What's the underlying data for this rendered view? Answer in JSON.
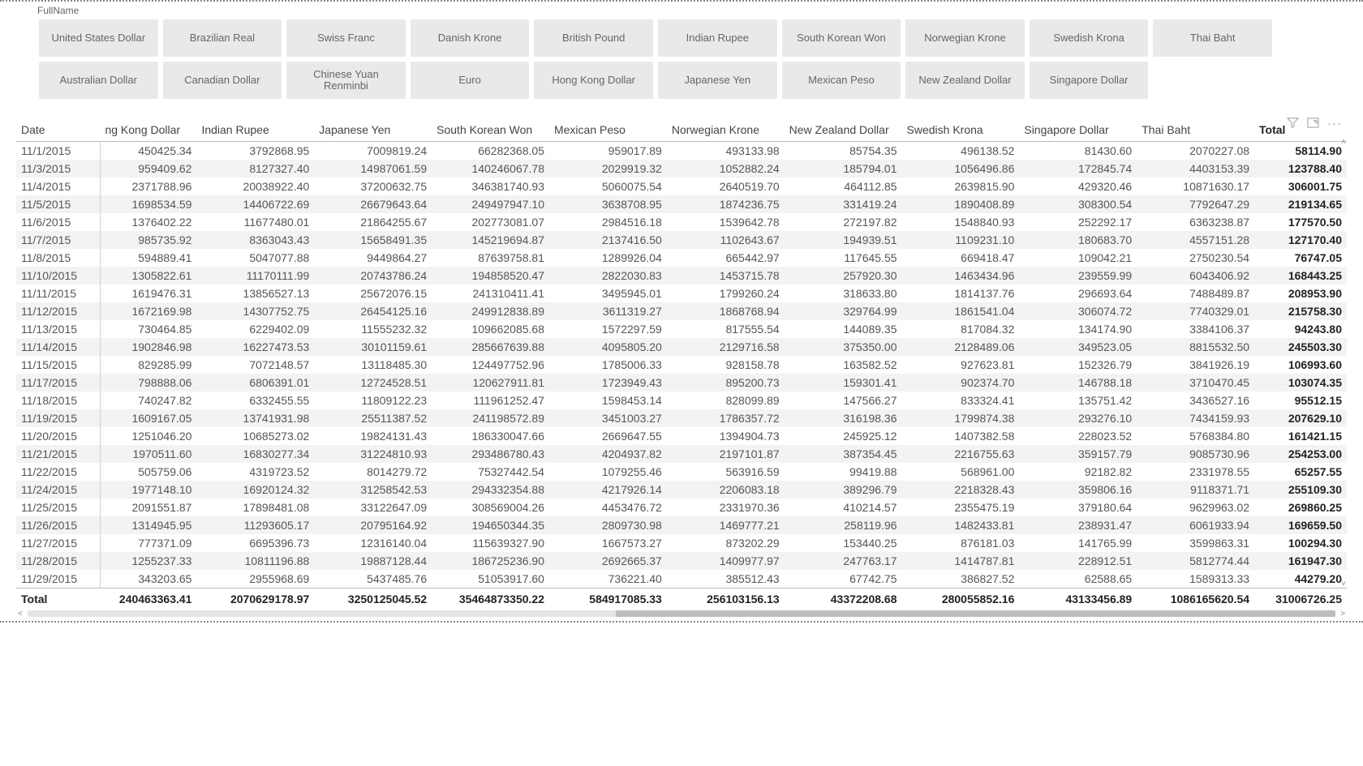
{
  "slicer": {
    "title": "FullName",
    "buttons": [
      "United States Dollar",
      "Brazilian Real",
      "Swiss Franc",
      "Danish Krone",
      "British Pound",
      "Indian Rupee",
      "South Korean Won",
      "Norwegian Krone",
      "Swedish Krona",
      "Thai Baht",
      "Australian Dollar",
      "Canadian Dollar",
      "Chinese Yuan Renminbi",
      "Euro",
      "Hong Kong Dollar",
      "Japanese Yen",
      "Mexican Peso",
      "New Zealand Dollar",
      "Singapore Dollar"
    ]
  },
  "toolbar": {
    "filter_tip": "Filter",
    "focus_tip": "Focus mode",
    "more_tip": "More options"
  },
  "table": {
    "columns": [
      "Date",
      "ng Kong Dollar",
      "Indian Rupee",
      "Japanese Yen",
      "South Korean Won",
      "Mexican Peso",
      "Norwegian Krone",
      "New Zealand Dollar",
      "Swedish Krona",
      "Singapore Dollar",
      "Thai Baht",
      "Total"
    ],
    "rows": [
      [
        "11/1/2015",
        "450425.34",
        "3792868.95",
        "7009819.24",
        "66282368.05",
        "959017.89",
        "493133.98",
        "85754.35",
        "496138.52",
        "81430.60",
        "2070227.08",
        "58114.90"
      ],
      [
        "11/3/2015",
        "959409.62",
        "8127327.40",
        "14987061.59",
        "140246067.78",
        "2029919.32",
        "1052882.24",
        "185794.01",
        "1056496.86",
        "172845.74",
        "4403153.39",
        "123788.40"
      ],
      [
        "11/4/2015",
        "2371788.96",
        "20038922.40",
        "37200632.75",
        "346381740.93",
        "5060075.54",
        "2640519.70",
        "464112.85",
        "2639815.90",
        "429320.46",
        "10871630.17",
        "306001.75"
      ],
      [
        "11/5/2015",
        "1698534.59",
        "14406722.69",
        "26679643.64",
        "249497947.10",
        "3638708.95",
        "1874236.75",
        "331419.24",
        "1890408.89",
        "308300.54",
        "7792647.29",
        "219134.65"
      ],
      [
        "11/6/2015",
        "1376402.22",
        "11677480.01",
        "21864255.67",
        "202773081.07",
        "2984516.18",
        "1539642.78",
        "272197.82",
        "1548840.93",
        "252292.17",
        "6363238.87",
        "177570.50"
      ],
      [
        "11/7/2015",
        "985735.92",
        "8363043.43",
        "15658491.35",
        "145219694.87",
        "2137416.50",
        "1102643.67",
        "194939.51",
        "1109231.10",
        "180683.70",
        "4557151.28",
        "127170.40"
      ],
      [
        "11/8/2015",
        "594889.41",
        "5047077.88",
        "9449864.27",
        "87639758.81",
        "1289926.04",
        "665442.97",
        "117645.55",
        "669418.47",
        "109042.21",
        "2750230.54",
        "76747.05"
      ],
      [
        "11/10/2015",
        "1305822.61",
        "11170111.99",
        "20743786.24",
        "194858520.47",
        "2822030.83",
        "1453715.78",
        "257920.30",
        "1463434.96",
        "239559.99",
        "6043406.92",
        "168443.25"
      ],
      [
        "11/11/2015",
        "1619476.31",
        "13856527.13",
        "25672076.15",
        "241310411.41",
        "3495945.01",
        "1799260.24",
        "318633.80",
        "1814137.76",
        "296693.64",
        "7488489.87",
        "208953.90"
      ],
      [
        "11/12/2015",
        "1672169.98",
        "14307752.75",
        "26454125.16",
        "249912838.89",
        "3611319.27",
        "1868768.94",
        "329764.99",
        "1861541.04",
        "306074.72",
        "7740329.01",
        "215758.30"
      ],
      [
        "11/13/2015",
        "730464.85",
        "6229402.09",
        "11555232.32",
        "109662085.68",
        "1572297.59",
        "817555.54",
        "144089.35",
        "817084.32",
        "134174.90",
        "3384106.37",
        "94243.80"
      ],
      [
        "11/14/2015",
        "1902846.98",
        "16227473.53",
        "30101159.61",
        "285667639.88",
        "4095805.20",
        "2129716.58",
        "375350.00",
        "2128489.06",
        "349523.05",
        "8815532.50",
        "245503.30"
      ],
      [
        "11/15/2015",
        "829285.99",
        "7072148.57",
        "13118485.30",
        "124497752.96",
        "1785006.33",
        "928158.78",
        "163582.52",
        "927623.81",
        "152326.79",
        "3841926.19",
        "106993.60"
      ],
      [
        "11/17/2015",
        "798888.06",
        "6806391.01",
        "12724528.51",
        "120627911.81",
        "1723949.43",
        "895200.73",
        "159301.41",
        "902374.70",
        "146788.18",
        "3710470.45",
        "103074.35"
      ],
      [
        "11/18/2015",
        "740247.82",
        "6332455.55",
        "11809122.23",
        "111961252.47",
        "1598453.14",
        "828099.89",
        "147566.27",
        "833324.41",
        "135751.42",
        "3436527.16",
        "95512.15"
      ],
      [
        "11/19/2015",
        "1609167.05",
        "13741931.98",
        "25511387.52",
        "241198572.89",
        "3451003.27",
        "1786357.72",
        "316198.36",
        "1799874.38",
        "293276.10",
        "7434159.93",
        "207629.10"
      ],
      [
        "11/20/2015",
        "1251046.20",
        "10685273.02",
        "19824131.43",
        "186330047.66",
        "2669647.55",
        "1394904.73",
        "245925.12",
        "1407382.58",
        "228023.52",
        "5768384.80",
        "161421.15"
      ],
      [
        "11/21/2015",
        "1970511.60",
        "16830277.34",
        "31224810.93",
        "293486780.43",
        "4204937.82",
        "2197101.87",
        "387354.45",
        "2216755.63",
        "359157.79",
        "9085730.96",
        "254253.00"
      ],
      [
        "11/22/2015",
        "505759.06",
        "4319723.52",
        "8014279.72",
        "75327442.54",
        "1079255.46",
        "563916.59",
        "99419.88",
        "568961.00",
        "92182.82",
        "2331978.55",
        "65257.55"
      ],
      [
        "11/24/2015",
        "1977148.10",
        "16920124.32",
        "31258542.53",
        "294332354.88",
        "4217926.14",
        "2206083.18",
        "389296.79",
        "2218328.43",
        "359806.16",
        "9118371.71",
        "255109.30"
      ],
      [
        "11/25/2015",
        "2091551.87",
        "17898481.08",
        "33122647.09",
        "308569004.26",
        "4453476.72",
        "2331970.36",
        "410214.57",
        "2355475.19",
        "379180.64",
        "9629963.02",
        "269860.25"
      ],
      [
        "11/26/2015",
        "1314945.95",
        "11293605.17",
        "20795164.92",
        "194650344.35",
        "2809730.98",
        "1469777.21",
        "258119.96",
        "1482433.81",
        "238931.47",
        "6061933.94",
        "169659.50"
      ],
      [
        "11/27/2015",
        "777371.09",
        "6695396.73",
        "12316140.04",
        "115639327.90",
        "1667573.27",
        "873202.29",
        "153440.25",
        "876181.03",
        "141765.99",
        "3599863.31",
        "100294.30"
      ],
      [
        "11/28/2015",
        "1255237.33",
        "10811196.88",
        "19887128.44",
        "186725236.90",
        "2692665.37",
        "1409977.97",
        "247763.17",
        "1414787.81",
        "228912.51",
        "5812774.44",
        "161947.30"
      ],
      [
        "11/29/2015",
        "343203.65",
        "2955968.69",
        "5437485.76",
        "51053917.60",
        "736221.40",
        "385512.43",
        "67742.75",
        "386827.52",
        "62588.65",
        "1589313.33",
        "44279.20"
      ]
    ],
    "total_label": "Total",
    "totals": [
      "240463363.41",
      "2070629178.97",
      "3250125045.52",
      "35464873350.22",
      "584917085.33",
      "256103156.13",
      "43372208.68",
      "280055852.16",
      "43133456.89",
      "1086165620.54",
      "31006726.25"
    ]
  }
}
